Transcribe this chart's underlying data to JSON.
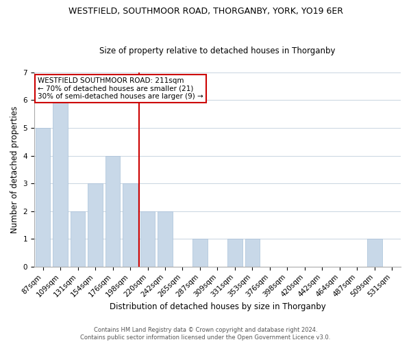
{
  "title": "WESTFIELD, SOUTHMOOR ROAD, THORGANBY, YORK, YO19 6ER",
  "subtitle": "Size of property relative to detached houses in Thorganby",
  "xlabel": "Distribution of detached houses by size in Thorganby",
  "ylabel": "Number of detached properties",
  "bar_labels": [
    "87sqm",
    "109sqm",
    "131sqm",
    "154sqm",
    "176sqm",
    "198sqm",
    "220sqm",
    "242sqm",
    "265sqm",
    "287sqm",
    "309sqm",
    "331sqm",
    "353sqm",
    "376sqm",
    "398sqm",
    "420sqm",
    "442sqm",
    "464sqm",
    "487sqm",
    "509sqm",
    "531sqm"
  ],
  "bar_values": [
    5,
    6,
    2,
    3,
    4,
    3,
    2,
    2,
    0,
    1,
    0,
    1,
    1,
    0,
    0,
    0,
    0,
    0,
    0,
    1,
    0
  ],
  "bar_color": "#c8d8e8",
  "bar_edge_color": "#a8c0d8",
  "vline_x": 5.5,
  "vline_color": "#cc0000",
  "annotation_box_edge_color": "#cc0000",
  "annotation_label": "WESTFIELD SOUTHMOOR ROAD: 211sqm",
  "annotation_line1": "← 70% of detached houses are smaller (21)",
  "annotation_line2": "30% of semi-detached houses are larger (9) →",
  "ylim": [
    0,
    7
  ],
  "yticks": [
    0,
    1,
    2,
    3,
    4,
    5,
    6,
    7
  ],
  "footer_line1": "Contains HM Land Registry data © Crown copyright and database right 2024.",
  "footer_line2": "Contains public sector information licensed under the Open Government Licence v3.0.",
  "background_color": "#ffffff",
  "grid_color": "#c8d4e0",
  "title_fontsize": 9,
  "subtitle_fontsize": 8.5,
  "axis_label_fontsize": 8.5,
  "tick_fontsize": 7.5,
  "annotation_fontsize": 7.5,
  "footer_fontsize": 6
}
